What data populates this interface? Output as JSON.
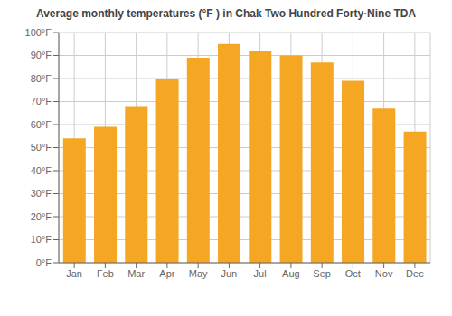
{
  "chart_data": {
    "type": "bar",
    "title": "Average monthly temperatures (°F ) in Chak Two Hundred Forty-Nine TDA",
    "categories": [
      "Jan",
      "Feb",
      "Mar",
      "Apr",
      "May",
      "Jun",
      "Jul",
      "Aug",
      "Sep",
      "Oct",
      "Nov",
      "Dec"
    ],
    "values": [
      54,
      59,
      68,
      80,
      89,
      95,
      92,
      90,
      87,
      79,
      67,
      57
    ],
    "color": "#F5A623",
    "ylim": [
      0,
      100
    ],
    "yticks": [
      {
        "value": 0,
        "label": "0°F"
      },
      {
        "value": 10,
        "label": "10°F"
      },
      {
        "value": 20,
        "label": "20°F"
      },
      {
        "value": 30,
        "label": "30°F"
      },
      {
        "value": 40,
        "label": "40°F"
      },
      {
        "value": 50,
        "label": "50°F"
      },
      {
        "value": 60,
        "label": "60°F"
      },
      {
        "value": 70,
        "label": "70°F"
      },
      {
        "value": 80,
        "label": "80°F"
      },
      {
        "value": 90,
        "label": "90°F"
      },
      {
        "value": 100,
        "label": "100°F"
      }
    ],
    "grid": true
  }
}
